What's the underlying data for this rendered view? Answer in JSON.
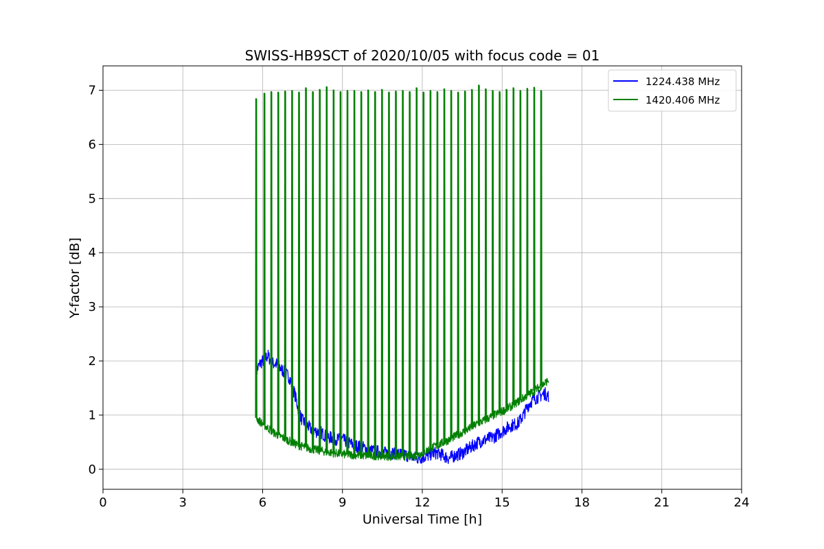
{
  "chart_data": {
    "type": "line",
    "title": "SWISS-HB9SCT of 2020/10/05 with focus code = 01",
    "xlabel": "Universal Time [h]",
    "ylabel": "Y-factor [dB]",
    "xlim": [
      0,
      24
    ],
    "ylim": [
      -0.37,
      7.45
    ],
    "xticks": [
      0,
      3,
      6,
      9,
      12,
      15,
      18,
      21,
      24
    ],
    "yticks": [
      0,
      1,
      2,
      3,
      4,
      5,
      6,
      7
    ],
    "grid": true,
    "legend_position": "top-right",
    "series": [
      {
        "name": "1224.438 MHz",
        "color": "#0000ff",
        "x": [
          5.75,
          5.8,
          5.9,
          6.0,
          6.1,
          6.2,
          6.3,
          6.4,
          6.5,
          6.6,
          6.7,
          6.8,
          6.9,
          7.0,
          7.1,
          7.2,
          7.3,
          7.4,
          7.5,
          7.6,
          7.8,
          8.0,
          8.2,
          8.4,
          8.6,
          8.8,
          9.0,
          9.2,
          9.4,
          9.6,
          9.8,
          10.0,
          10.3,
          10.6,
          10.9,
          11.2,
          11.5,
          11.8,
          12.0,
          12.2,
          12.4,
          12.6,
          12.8,
          13.0,
          13.2,
          13.5,
          13.8,
          14.1,
          14.4,
          14.7,
          15.0,
          15.3,
          15.6,
          15.8,
          16.0,
          16.2,
          16.4,
          16.6,
          16.75
        ],
        "y": [
          1.75,
          1.85,
          1.95,
          2.0,
          2.05,
          2.1,
          2.0,
          1.95,
          1.95,
          1.9,
          1.85,
          1.8,
          1.75,
          1.7,
          1.55,
          1.4,
          1.2,
          1.0,
          0.9,
          0.85,
          0.75,
          0.7,
          0.68,
          0.6,
          0.58,
          0.55,
          0.55,
          0.5,
          0.45,
          0.42,
          0.4,
          0.35,
          0.33,
          0.3,
          0.3,
          0.28,
          0.25,
          0.2,
          0.22,
          0.25,
          0.3,
          0.3,
          0.25,
          0.2,
          0.25,
          0.3,
          0.4,
          0.5,
          0.55,
          0.6,
          0.7,
          0.8,
          0.85,
          1.0,
          1.2,
          1.3,
          1.35,
          1.4,
          1.35
        ]
      },
      {
        "name": "1420.406 MHz",
        "color": "#008000",
        "x": [
          5.75,
          5.9,
          6.1,
          6.3,
          6.5,
          6.7,
          6.9,
          7.1,
          7.3,
          7.5,
          7.8,
          8.1,
          8.4,
          8.7,
          9.0,
          9.3,
          9.6,
          9.9,
          10.2,
          10.5,
          10.8,
          11.1,
          11.4,
          11.7,
          12.0,
          12.3,
          12.6,
          12.9,
          13.2,
          13.5,
          13.8,
          14.1,
          14.4,
          14.7,
          15.0,
          15.3,
          15.6,
          15.9,
          16.2,
          16.5,
          16.75
        ],
        "y": [
          0.95,
          0.88,
          0.8,
          0.72,
          0.65,
          0.6,
          0.55,
          0.5,
          0.45,
          0.42,
          0.38,
          0.35,
          0.32,
          0.3,
          0.28,
          0.27,
          0.26,
          0.25,
          0.25,
          0.25,
          0.24,
          0.24,
          0.24,
          0.25,
          0.3,
          0.38,
          0.45,
          0.52,
          0.6,
          0.68,
          0.76,
          0.85,
          0.92,
          1.0,
          1.07,
          1.15,
          1.25,
          1.35,
          1.45,
          1.55,
          1.65
        ]
      }
    ],
    "spike_series": "1420.406 MHz",
    "spike_x": [
      5.75,
      6.06,
      6.32,
      6.58,
      6.84,
      7.1,
      7.36,
      7.62,
      7.88,
      8.14,
      8.4,
      8.66,
      8.92,
      9.18,
      9.44,
      9.7,
      9.96,
      10.22,
      10.48,
      10.74,
      11.0,
      11.26,
      11.52,
      11.78,
      12.04,
      12.3,
      12.56,
      12.82,
      13.08,
      13.34,
      13.6,
      13.86,
      14.12,
      14.38,
      14.64,
      14.9,
      15.16,
      15.42,
      15.68,
      15.94,
      16.2,
      16.46
    ],
    "spike_peak": [
      6.85,
      6.95,
      6.98,
      6.97,
      6.99,
      7.0,
      6.97,
      7.05,
      6.98,
      7.02,
      7.07,
      7.01,
      6.98,
      7.0,
      7.0,
      6.98,
      7.01,
      6.98,
      7.02,
      6.97,
      6.99,
      7.0,
      6.98,
      7.05,
      6.97,
      7.0,
      6.98,
      7.03,
      7.0,
      6.97,
      6.99,
      7.02,
      7.1,
      7.03,
      7.0,
      6.98,
      7.02,
      7.05,
      7.0,
      7.04,
      7.06,
      7.0
    ]
  }
}
